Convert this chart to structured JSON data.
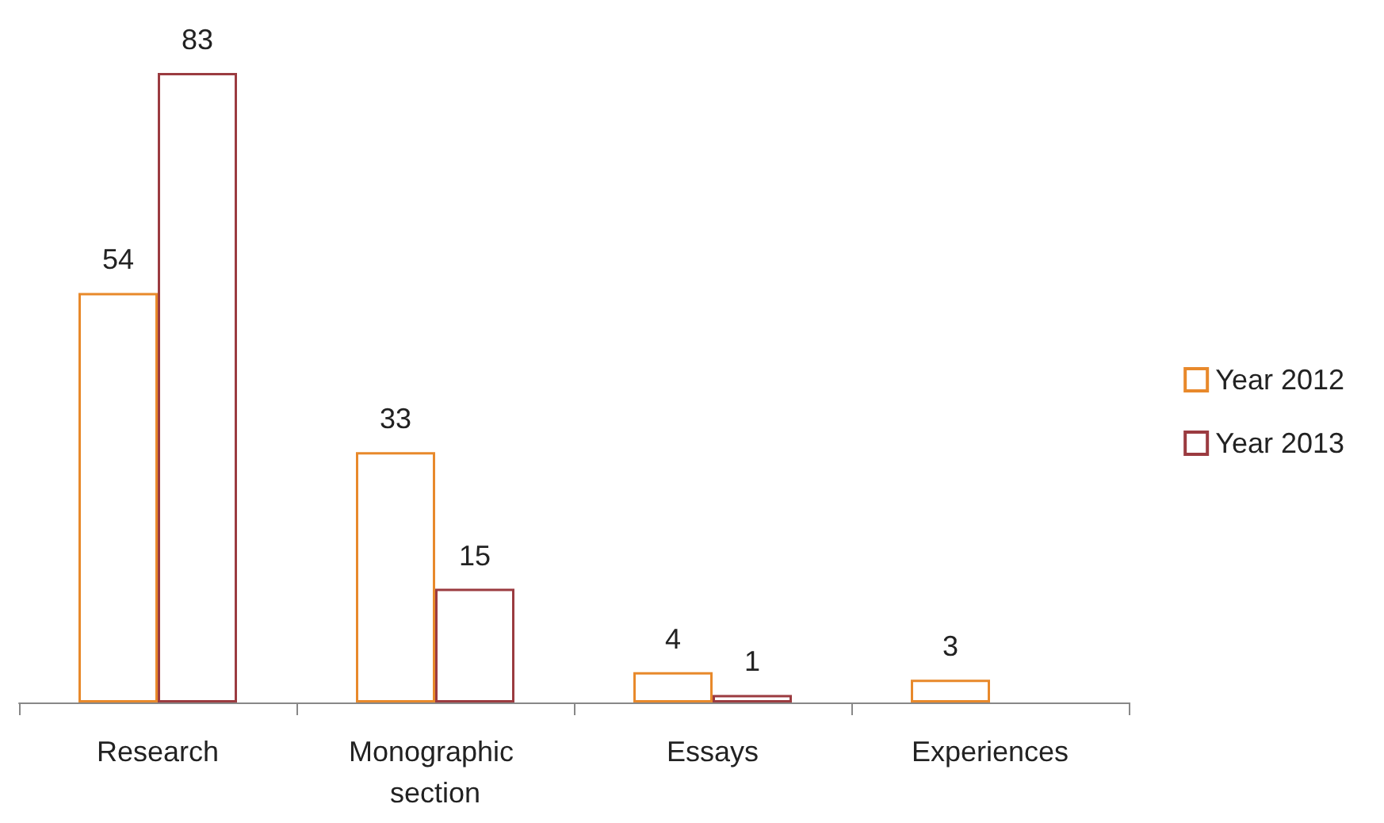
{
  "chart_data": {
    "type": "bar",
    "categories": [
      "Research",
      "Monographic section",
      "Essays",
      "Experiences"
    ],
    "series": [
      {
        "name": "Year 2012",
        "color": "#e8892b",
        "values": [
          54,
          33,
          4,
          3
        ]
      },
      {
        "name": "Year 2013",
        "color": "#9b3b40",
        "values": [
          83,
          15,
          1,
          null
        ]
      }
    ],
    "data_labels": true,
    "legend": "right",
    "grid": false
  }
}
